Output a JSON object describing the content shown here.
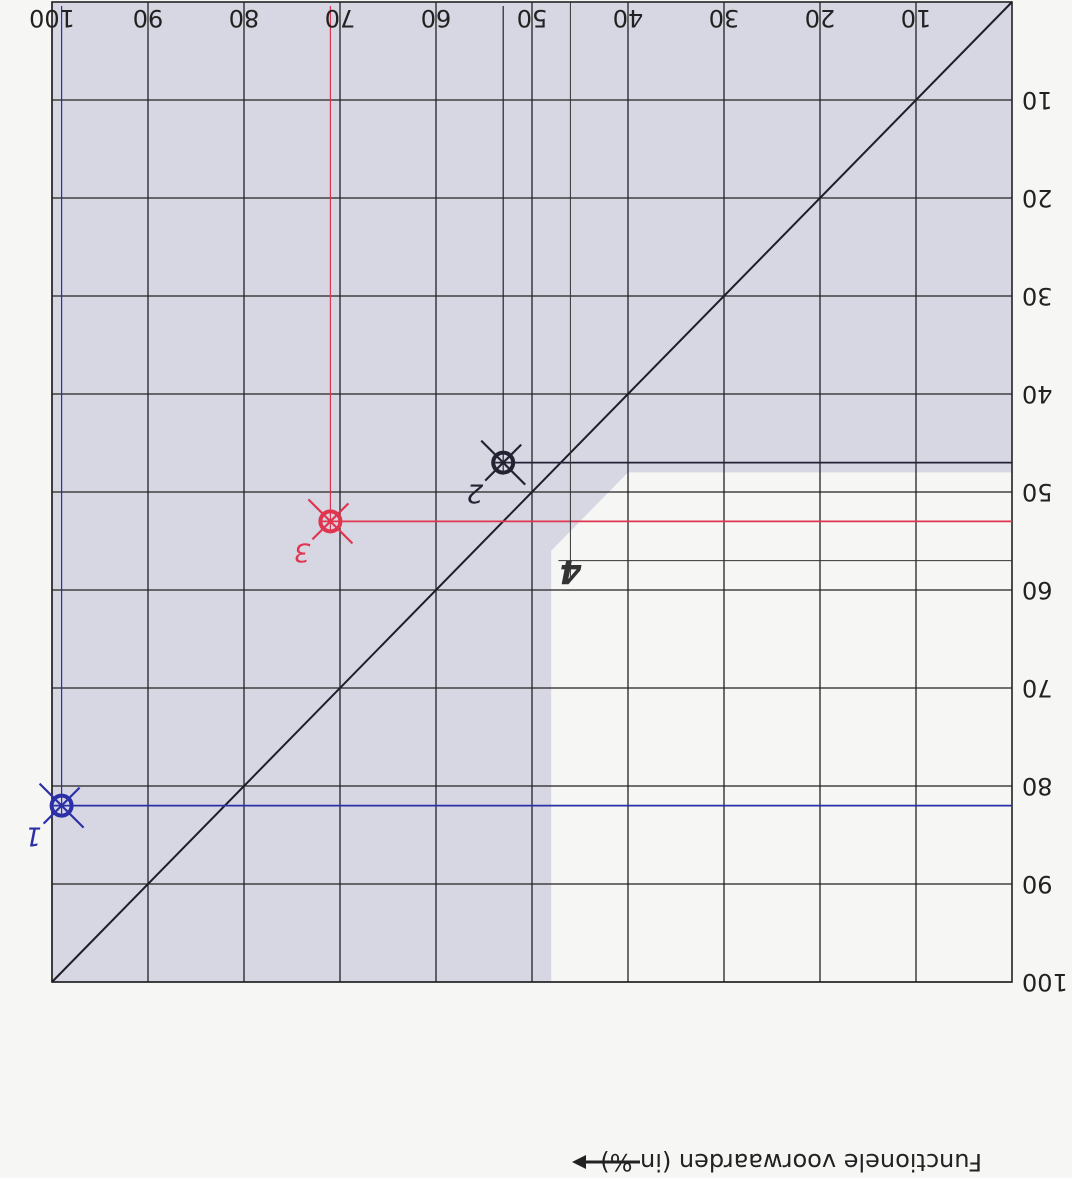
{
  "chart_data": {
    "type": "scatter",
    "title": "",
    "xlabel": "Functionele voorwaarden (in %)",
    "ylabel": "",
    "x_ticks": [
      10,
      20,
      30,
      40,
      50,
      60,
      70,
      80,
      90,
      100
    ],
    "y_ticks": [
      10,
      20,
      30,
      40,
      50,
      60,
      70,
      80,
      90,
      100
    ],
    "xlim": [
      0,
      100
    ],
    "ylim": [
      0,
      100
    ],
    "grid": true,
    "orientation": "rotated 180 degrees",
    "shaded_region": "grey staircase region above the diagonal",
    "reference_line": {
      "from": [
        0,
        0
      ],
      "to": [
        100,
        100
      ]
    },
    "series": [
      {
        "label": "1",
        "x": 99,
        "y": 82,
        "color": "#2b2fa8"
      },
      {
        "label": "2",
        "x": 53,
        "y": 47,
        "color": "#222233"
      },
      {
        "label": "3",
        "x": 71,
        "y": 53,
        "color": "#e0344f"
      }
    ],
    "annotations": [
      {
        "text": "4",
        "x": 46,
        "y": 57,
        "color": "#333333"
      }
    ],
    "colors": {
      "shade": "#d7d7e4",
      "grid": "#222222",
      "diagonal": "#1e1e2a",
      "marker_blue": "#2b2fa8",
      "marker_black": "#222233",
      "marker_red": "#e0344f"
    }
  }
}
